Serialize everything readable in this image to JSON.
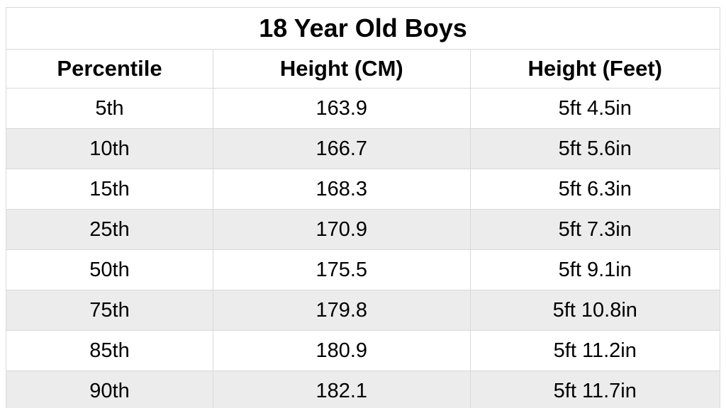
{
  "table": {
    "type": "table",
    "title": "18 Year Old Boys",
    "title_fontsize": 36,
    "header_fontsize": 31,
    "cell_fontsize": 29,
    "font_family": "Arial",
    "text_color": "#000000",
    "border_color": "#d9d9d9",
    "row_bg_odd": "#ffffff",
    "row_bg_even": "#ececec",
    "header_bg": "#ffffff",
    "columns": [
      {
        "key": "percentile",
        "label": "Percentile",
        "width_pct": 29,
        "align": "center"
      },
      {
        "key": "height_cm",
        "label": "Height (CM)",
        "width_pct": 36,
        "align": "center"
      },
      {
        "key": "height_ft",
        "label": "Height (Feet)",
        "width_pct": 35,
        "align": "center"
      }
    ],
    "rows": [
      {
        "percentile": "5th",
        "height_cm": "163.9",
        "height_ft": "5ft 4.5in"
      },
      {
        "percentile": "10th",
        "height_cm": "166.7",
        "height_ft": "5ft 5.6in"
      },
      {
        "percentile": "15th",
        "height_cm": "168.3",
        "height_ft": "5ft 6.3in"
      },
      {
        "percentile": "25th",
        "height_cm": "170.9",
        "height_ft": "5ft 7.3in"
      },
      {
        "percentile": "50th",
        "height_cm": "175.5",
        "height_ft": "5ft 9.1in"
      },
      {
        "percentile": "75th",
        "height_cm": "179.8",
        "height_ft": "5ft 10.8in"
      },
      {
        "percentile": "85th",
        "height_cm": "180.9",
        "height_ft": "5ft 11.2in"
      },
      {
        "percentile": "90th",
        "height_cm": "182.1",
        "height_ft": "5ft 11.7in"
      }
    ]
  }
}
